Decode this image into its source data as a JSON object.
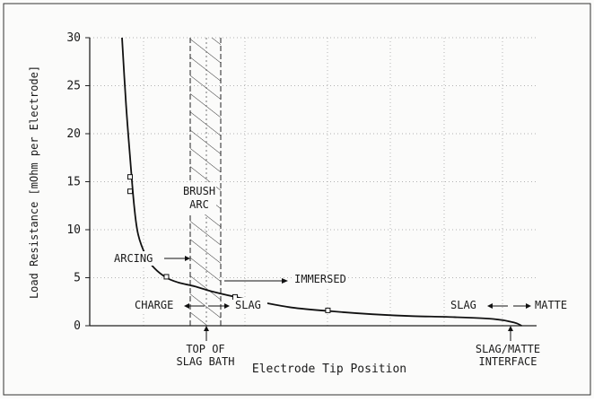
{
  "chart_data": {
    "type": "line",
    "title": "",
    "xlabel": "Electrode Tip Position",
    "ylabel": "Load Resistance [mOhm per Electrode]",
    "ylim": [
      0,
      30
    ],
    "yticks": [
      0,
      5,
      10,
      15,
      20,
      25,
      30
    ],
    "xticks": [],
    "grid": true,
    "x_scale": "qualitative position (no numeric tick labels)",
    "series": [
      {
        "x": [
          0.8,
          0.9,
          1.0,
          1.1,
          1.2,
          1.4,
          1.6,
          1.9,
          2.2,
          2.6,
          3.0,
          3.6,
          4.2,
          5.0,
          6.0,
          7.0,
          8.0,
          9.0,
          10.0,
          10.5,
          10.7
        ],
        "y": [
          30,
          23,
          17.5,
          12.5,
          9.5,
          7.2,
          6.0,
          5.0,
          4.5,
          4.1,
          3.6,
          3.0,
          2.5,
          1.9,
          1.5,
          1.2,
          1.0,
          0.9,
          0.7,
          0.35,
          0.0
        ]
      }
    ],
    "markers": [
      {
        "x": 1.0,
        "y": 15.5
      },
      {
        "x": 1.0,
        "y": 14.0
      },
      {
        "x": 1.9,
        "y": 5.1
      },
      {
        "x": 3.6,
        "y": 3.0
      },
      {
        "x": 5.9,
        "y": 1.6
      }
    ],
    "annotations": {
      "brush_arc": [
        "BRUSH",
        "ARC"
      ],
      "arcing": "ARCING",
      "immersed": "IMMERSED",
      "charge": "CHARGE",
      "slag_left": "SLAG",
      "slag_right": "SLAG",
      "matte": "MATTE",
      "top_of_slag_bath": [
        "TOP OF",
        "SLAG BATH"
      ],
      "slag_matte_interface": [
        "SLAG/MATTE",
        "INTERFACE"
      ]
    }
  }
}
